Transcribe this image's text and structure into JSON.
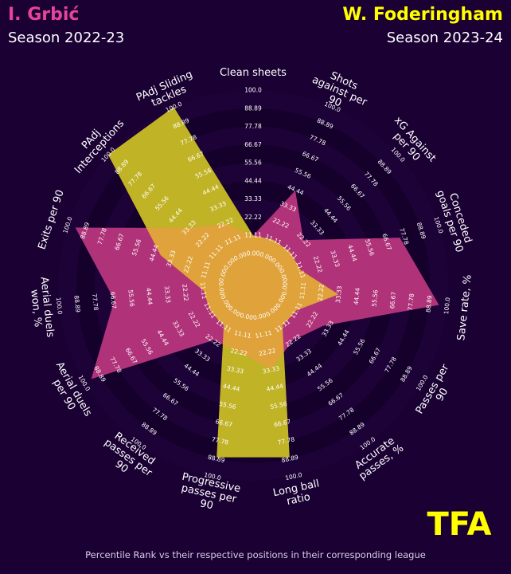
{
  "header": {
    "player1_name": "I. Grbić",
    "player1_season": "Season 2022-23",
    "player2_name": "W. Foderingham",
    "player2_season": "Season 2023-24"
  },
  "footer_text": "Percentile Rank vs their respective positions in their corresponding league",
  "logo_text": "TFA",
  "colors": {
    "background": "#1a0033",
    "player1": "#e6449a",
    "player2": "#ffff00",
    "player1_fill": "#b0337a",
    "player2_fill": "#c1b326",
    "overlap_fill": "#e0a23a",
    "ring_dark": "#14002a",
    "ring_light": "#1d0238"
  },
  "chart_data": {
    "type": "radar",
    "title": "",
    "value_range": [
      0,
      100
    ],
    "ring_tick_labels": [
      "0.00",
      "11.11",
      "22.22",
      "33.33",
      "44.44",
      "55.56",
      "66.67",
      "77.78",
      "88.89",
      "100.0"
    ],
    "parameters": [
      "Clean sheets",
      "Shots against per 90",
      "xG Against per 90",
      "Conceded goals per 90",
      "Save rate, %",
      "Passes per 90",
      "Accurate passes, %",
      "Long ball ratio",
      "Progressive passes per 90",
      "Received passes per 90",
      "Aerial duels per 90",
      "Aerial duels won, %",
      "Exits per 90",
      "PAdj Interceptions",
      "PAdj Sliding tackles"
    ],
    "series": [
      {
        "name": "I. Grbić",
        "values": [
          11,
          44,
          22,
          75,
          95,
          30,
          22,
          33,
          22,
          22,
          95,
          66,
          95,
          33,
          22
        ]
      },
      {
        "name": "W. Foderingham",
        "values": [
          11,
          11,
          11,
          11,
          33,
          11,
          11,
          88,
          88,
          11,
          11,
          11,
          40,
          100,
          100
        ]
      }
    ]
  }
}
